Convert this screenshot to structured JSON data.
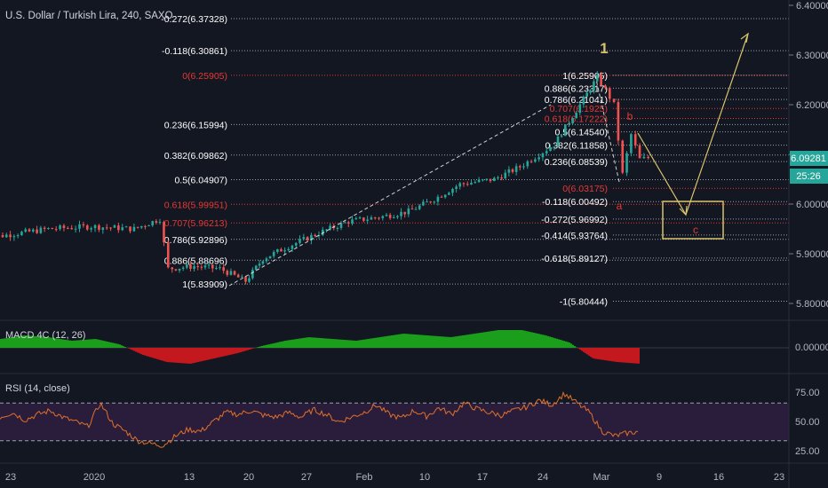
{
  "header": {
    "title": "U.S. Dollar / Turkish Lira, 240, SAXO"
  },
  "price_axis": {
    "ticks": [
      "6.40000",
      "6.30000",
      "6.20000",
      "6.10000",
      "6.00000",
      "5.90000",
      "5.80000"
    ],
    "last_price": "6.09281",
    "countdown": "25:26"
  },
  "time_axis": {
    "labels": [
      "23",
      "2020",
      "13",
      "20",
      "27",
      "Feb",
      "10",
      "17",
      "24",
      "Mar",
      "9",
      "16",
      "23"
    ]
  },
  "macd": {
    "label": "MACD 4C (12, 26)",
    "ticks": [
      "0.00000"
    ]
  },
  "rsi": {
    "label": "RSI (14, close)",
    "ticks": [
      "75.00",
      "50.00",
      "25.00"
    ]
  },
  "colors": {
    "background": "#131722",
    "up": "#26a69a",
    "down": "#ef5350",
    "fib_white": "#ffffff",
    "fib_red": "#e53935",
    "wave": "#d7c36b",
    "macd_up": "#1b9e1b",
    "macd_down": "#c2181e",
    "rsi_line": "#e1702a",
    "rsi_band": "#2a1d3b"
  },
  "chart_data": {
    "type": "candlestick",
    "symbol": "USD/TRY",
    "interval": "240",
    "ylim": [
      5.77,
      6.41
    ],
    "close_path": [
      {
        "d": "2019-12-19",
        "v": 5.93
      },
      {
        "d": "2019-12-23",
        "v": 5.94
      },
      {
        "d": "2019-12-27",
        "v": 5.95
      },
      {
        "d": "2020-01-01",
        "v": 5.955
      },
      {
        "d": "2020-01-06",
        "v": 5.95
      },
      {
        "d": "2020-01-09",
        "v": 5.97
      },
      {
        "d": "2020-01-10",
        "v": 5.87
      },
      {
        "d": "2020-01-13",
        "v": 5.875
      },
      {
        "d": "2020-01-16",
        "v": 5.87
      },
      {
        "d": "2020-01-19",
        "v": 5.845
      },
      {
        "d": "2020-01-21",
        "v": 5.89
      },
      {
        "d": "2020-01-24",
        "v": 5.915
      },
      {
        "d": "2020-01-28",
        "v": 5.945
      },
      {
        "d": "2020-01-31",
        "v": 5.965
      },
      {
        "d": "2020-02-04",
        "v": 5.975
      },
      {
        "d": "2020-02-07",
        "v": 5.985
      },
      {
        "d": "2020-02-10",
        "v": 6.01
      },
      {
        "d": "2020-02-13",
        "v": 6.04
      },
      {
        "d": "2020-02-17",
        "v": 6.05
      },
      {
        "d": "2020-02-20",
        "v": 6.075
      },
      {
        "d": "2020-02-24",
        "v": 6.12
      },
      {
        "d": "2020-02-27",
        "v": 6.2
      },
      {
        "d": "2020-02-29",
        "v": 6.255
      },
      {
        "d": "2020-03-01",
        "v": 6.23
      },
      {
        "d": "2020-03-02",
        "v": 6.2
      },
      {
        "d": "2020-03-03",
        "v": 6.06
      },
      {
        "d": "2020-03-04",
        "v": 6.14
      },
      {
        "d": "2020-03-05",
        "v": 6.09
      },
      {
        "d": "2020-03-06",
        "v": 6.093
      }
    ],
    "fib_left": {
      "color": "mixed white/red",
      "levels": [
        {
          "label": "-0.272(6.37328)",
          "value": 6.37328,
          "color": "white"
        },
        {
          "label": "-0.118(6.30861)",
          "value": 6.30861,
          "color": "white"
        },
        {
          "label": "0(6.25905)",
          "value": 6.25905,
          "color": "red"
        },
        {
          "label": "0.236(6.15994)",
          "value": 6.15994,
          "color": "white"
        },
        {
          "label": "0.382(6.09862)",
          "value": 6.09862,
          "color": "white"
        },
        {
          "label": "0.5(6.04907)",
          "value": 6.04907,
          "color": "white"
        },
        {
          "label": "0.618(5.99951)",
          "value": 5.99951,
          "color": "red"
        },
        {
          "label": "0.707(5.96213)",
          "value": 5.96213,
          "color": "red"
        },
        {
          "label": "0.786(5.92896)",
          "value": 5.92896,
          "color": "white"
        },
        {
          "label": "0.886(5.88696)",
          "value": 5.88696,
          "color": "white"
        },
        {
          "label": "1(5.83909)",
          "value": 5.83909,
          "color": "white"
        }
      ]
    },
    "fib_right": {
      "levels": [
        {
          "label": "1(6.25905)",
          "value": 6.25905,
          "color": "white"
        },
        {
          "label": "0.886(6.23317)",
          "value": 6.23317,
          "color": "white"
        },
        {
          "label": "0.786(6.21041)",
          "value": 6.21041,
          "color": "white"
        },
        {
          "label": "0.707(6.1925)",
          "value": 6.1925,
          "color": "red"
        },
        {
          "label": "0.618(6.17222)",
          "value": 6.17222,
          "color": "red"
        },
        {
          "label": "0.5(6.14540)",
          "value": 6.1454,
          "color": "white"
        },
        {
          "label": "0.382(6.11858)",
          "value": 6.11858,
          "color": "white"
        },
        {
          "label": "0.236(6.08539)",
          "value": 6.08539,
          "color": "white"
        },
        {
          "label": "0(6.03175)",
          "value": 6.03175,
          "color": "red"
        },
        {
          "label": "-0.118(6.00492)",
          "value": 6.00492,
          "color": "white"
        },
        {
          "label": "-0.272(5.96992)",
          "value": 5.96992,
          "color": "white"
        },
        {
          "label": "-0.414(5.93764)",
          "value": 5.93764,
          "color": "white"
        },
        {
          "label": "-0.618(5.89127)",
          "value": 5.89127,
          "color": "white"
        },
        {
          "label": "-1(5.80444)",
          "value": 5.80444,
          "color": "white"
        }
      ]
    },
    "waves": [
      {
        "label": "1",
        "color": "wave"
      },
      {
        "label": "a",
        "color": "red"
      },
      {
        "label": "b",
        "color": "red"
      },
      {
        "label": "c",
        "color": "red"
      }
    ],
    "macd": {
      "zero": 0,
      "hist_shape": "positive through Jan-Feb, negative after Mar 3",
      "values": [
        0.5,
        0.7,
        0.6,
        0.4,
        0.5,
        0.2,
        -0.4,
        -0.8,
        -0.9,
        -0.6,
        -0.3,
        0.1,
        0.4,
        0.6,
        0.5,
        0.4,
        0.6,
        0.8,
        0.7,
        0.6,
        0.8,
        1.0,
        1.0,
        0.7,
        0.3,
        -0.6,
        -0.8,
        -0.9
      ]
    },
    "rsi": {
      "bands": [
        70,
        30
      ],
      "ylim": [
        20,
        85
      ],
      "values": [
        55,
        60,
        52,
        58,
        62,
        55,
        50,
        45,
        70,
        48,
        40,
        30,
        27,
        25,
        35,
        42,
        40,
        50,
        60,
        58,
        62,
        57,
        55,
        60,
        55,
        63,
        58,
        50,
        55,
        60,
        68,
        58,
        54,
        62,
        56,
        65,
        58,
        70,
        64,
        60,
        57,
        62,
        66,
        73,
        68,
        80,
        70,
        60,
        40,
        35,
        38,
        40
      ]
    }
  }
}
